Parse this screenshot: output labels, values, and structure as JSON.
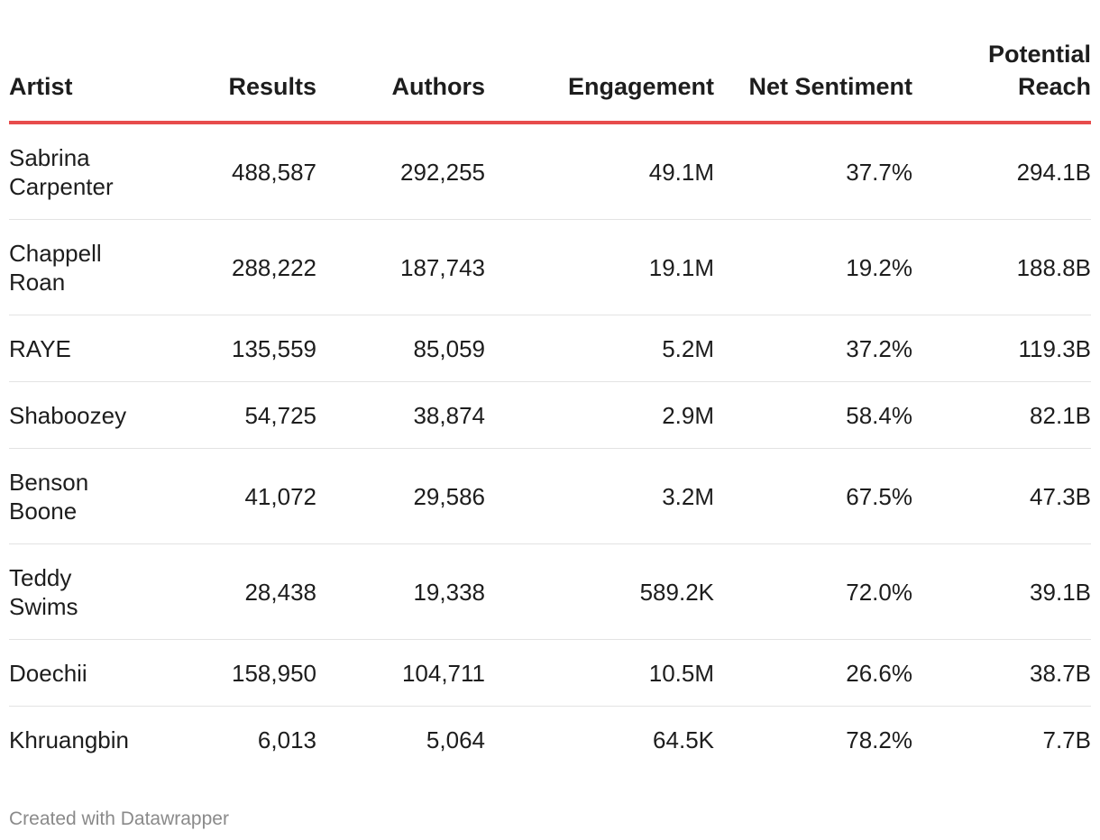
{
  "chart_data": {
    "type": "table",
    "columns": [
      "Artist",
      "Results",
      "Authors",
      "Engagement",
      "Net Sentiment",
      "Potential Reach"
    ],
    "rows": [
      {
        "artist": "Sabrina Carpenter",
        "results": "488,587",
        "authors": "292,255",
        "engagement": "49.1M",
        "net_sentiment": "37.7%",
        "potential_reach": "294.1B"
      },
      {
        "artist": "Chappell Roan",
        "results": "288,222",
        "authors": "187,743",
        "engagement": "19.1M",
        "net_sentiment": "19.2%",
        "potential_reach": "188.8B"
      },
      {
        "artist": "RAYE",
        "results": "135,559",
        "authors": "85,059",
        "engagement": "5.2M",
        "net_sentiment": "37.2%",
        "potential_reach": "119.3B"
      },
      {
        "artist": "Shaboozey",
        "results": "54,725",
        "authors": "38,874",
        "engagement": "2.9M",
        "net_sentiment": "58.4%",
        "potential_reach": "82.1B"
      },
      {
        "artist": "Benson Boone",
        "results": "41,072",
        "authors": "29,586",
        "engagement": "3.2M",
        "net_sentiment": "67.5%",
        "potential_reach": "47.3B"
      },
      {
        "artist": "Teddy Swims",
        "results": "28,438",
        "authors": "19,338",
        "engagement": "589.2K",
        "net_sentiment": "72.0%",
        "potential_reach": "39.1B"
      },
      {
        "artist": "Doechii",
        "results": "158,950",
        "authors": "104,711",
        "engagement": "10.5M",
        "net_sentiment": "26.6%",
        "potential_reach": "38.7B"
      },
      {
        "artist": "Khruangbin",
        "results": "6,013",
        "authors": "5,064",
        "engagement": "64.5K",
        "net_sentiment": "78.2%",
        "potential_reach": "7.7B"
      }
    ]
  },
  "footer": {
    "credit": "Created with Datawrapper"
  },
  "colors": {
    "header_rule": "#e74c4c",
    "row_divider": "#e3e3e3",
    "footer_text": "#8a8a8a"
  }
}
